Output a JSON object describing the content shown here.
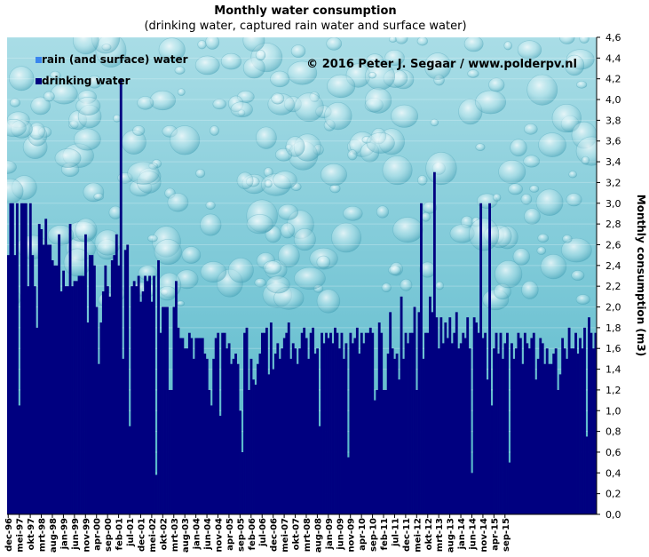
{
  "chart_data": {
    "type": "bar",
    "title": "Monthly water consumption",
    "subtitle": "(drinking  water, captured rain  water and surface water)",
    "copyright": "© 2016  Peter  J. Segaar  /  www.polderpv.nl",
    "ylabel": "Monthly consumption (m3)",
    "ylim": [
      0,
      4.6
    ],
    "yticks": [
      "0,0",
      "0,2",
      "0,4",
      "0,6",
      "0,8",
      "1,0",
      "1,2",
      "1,4",
      "1,6",
      "1,8",
      "2,0",
      "2,2",
      "2,4",
      "2,6",
      "2,8",
      "3,0",
      "3,2",
      "3,4",
      "3,6",
      "3,8",
      "4,0",
      "4,2",
      "4,4",
      "4,6"
    ],
    "legend_position": "top-left",
    "colors": {
      "drinking": "#000080",
      "rain": "#3a86ee",
      "background_top": "#a9dde6",
      "background_bottom": "#4fb4c8"
    },
    "series": [
      {
        "name": "rain (and surface) water",
        "key": "rain"
      },
      {
        "name": "drinking water",
        "key": "drinking"
      }
    ],
    "xticks": [
      "dec-96",
      "mei-97",
      "okt-97",
      "mrt-98",
      "aug-98",
      "jan-99",
      "jun-99",
      "nov-99",
      "apr-00",
      "sep-00",
      "feb-01",
      "jul-01",
      "dec-01",
      "mei-02",
      "okt-02",
      "mrt-03",
      "aug-03",
      "jan-04",
      "jun-04",
      "nov-04",
      "apr-05",
      "sep-05",
      "feb-06",
      "jul-06",
      "dec-06",
      "mei-07",
      "okt-07",
      "mrt-08",
      "aug-08",
      "jan-09",
      "jun-09",
      "nov-09",
      "apr-10",
      "sep-10",
      "feb-11",
      "jul-11",
      "dec-11",
      "mei-12",
      "okt-12",
      "mrt-13",
      "aug-13",
      "jan-14",
      "jun-14",
      "nov-14",
      "apr-15",
      "sep-15"
    ],
    "drinking": [
      2.5,
      3.0,
      3.0,
      2.5,
      3.0,
      1.05,
      3.0,
      3.0,
      3.0,
      2.2,
      3.0,
      2.5,
      2.2,
      1.8,
      2.8,
      2.75,
      2.6,
      2.85,
      2.6,
      2.6,
      2.45,
      2.4,
      2.4,
      2.7,
      2.15,
      2.35,
      2.2,
      2.2,
      2.8,
      2.2,
      2.25,
      2.25,
      2.3,
      2.3,
      2.3,
      2.7,
      1.85,
      2.5,
      2.5,
      2.4,
      2.0,
      1.45,
      1.85,
      2.15,
      2.4,
      2.2,
      2.1,
      2.45,
      2.5,
      2.7,
      2.4,
      4.2,
      1.5,
      2.55,
      2.6,
      0.85,
      2.2,
      2.25,
      2.2,
      2.3,
      2.05,
      2.15,
      2.3,
      2.25,
      2.3,
      2.05,
      2.3,
      0.38,
      2.45,
      1.75,
      2.0,
      2.0,
      2.0,
      1.2,
      1.2,
      2.0,
      2.25,
      1.8,
      1.7,
      1.7,
      1.6,
      1.6,
      1.75,
      1.7,
      1.5,
      1.7,
      1.7,
      1.7,
      1.7,
      1.55,
      1.5,
      1.2,
      1.05,
      1.5,
      1.7,
      1.75,
      0.95,
      1.75,
      1.75,
      1.6,
      1.65,
      1.45,
      1.5,
      1.55,
      1.45,
      1.0,
      0.6,
      1.75,
      1.8,
      1.2,
      1.5,
      1.3,
      1.25,
      1.45,
      1.55,
      1.75,
      1.75,
      1.8,
      1.35,
      1.85,
      1.4,
      1.55,
      1.65,
      1.5,
      1.6,
      1.7,
      1.75,
      1.85,
      1.5,
      1.65,
      1.6,
      1.45,
      1.6,
      1.75,
      1.8,
      1.7,
      1.5,
      1.75,
      1.8,
      1.55,
      1.6,
      0.85,
      1.75,
      1.65,
      1.75,
      1.7,
      1.75,
      1.65,
      1.8,
      1.75,
      1.6,
      1.75,
      1.5,
      1.65,
      0.55,
      1.75,
      1.65,
      1.7,
      1.8,
      1.55,
      1.75,
      1.65,
      1.75,
      1.75,
      1.8,
      1.75,
      1.1,
      1.2,
      1.85,
      1.75,
      1.2,
      1.2,
      1.55,
      1.95,
      1.6,
      1.5,
      1.55,
      1.3,
      2.1,
      1.5,
      1.75,
      1.65,
      1.75,
      1.75,
      2.0,
      1.2,
      1.95,
      3.0,
      1.5,
      1.75,
      1.75,
      2.1,
      1.95,
      3.3,
      1.9,
      1.6,
      1.9,
      1.65,
      1.85,
      1.7,
      1.9,
      1.65,
      1.75,
      1.95,
      1.6,
      1.65,
      1.75,
      1.7,
      1.9,
      1.6,
      0.4,
      1.9,
      1.85,
      1.75,
      3.0,
      1.7,
      1.75,
      1.3,
      3.0,
      1.05,
      1.6,
      1.75,
      1.55,
      1.75,
      1.5,
      1.65,
      1.75,
      0.5,
      1.65,
      1.5,
      1.6,
      1.75,
      1.7,
      1.45,
      1.75,
      1.65,
      1.6,
      1.7,
      1.75,
      1.3,
      1.5,
      1.7,
      1.65,
      1.45,
      1.6,
      1.45,
      1.45,
      1.55,
      1.6,
      1.2,
      1.35,
      1.7,
      1.6,
      1.5,
      1.8,
      1.6,
      1.6,
      1.75,
      1.55,
      1.7,
      1.6,
      1.8,
      0.75,
      1.9,
      1.75,
      1.6,
      1.75
    ],
    "rain": [
      0,
      0,
      0,
      0,
      0,
      0,
      0,
      0,
      0,
      0,
      0,
      0,
      0,
      0,
      0,
      0,
      0,
      0,
      0,
      0,
      0,
      0,
      0,
      0,
      0,
      0,
      0,
      0,
      0,
      0,
      0,
      0,
      0,
      0,
      0,
      0,
      0,
      0,
      0,
      0,
      0,
      0,
      0,
      0,
      0,
      0,
      0,
      0,
      0,
      0,
      0,
      0,
      0,
      0,
      0,
      0,
      0,
      0,
      0,
      0,
      0,
      0,
      0,
      0,
      0,
      0,
      0,
      0,
      0,
      0,
      0,
      0,
      0,
      0,
      0,
      0,
      0,
      0,
      0,
      0,
      0,
      0,
      0,
      0,
      0,
      0,
      0,
      0,
      0,
      0,
      0,
      0,
      0,
      0,
      0,
      0,
      0,
      0,
      0,
      0,
      0,
      0,
      0,
      0,
      0,
      0,
      0,
      0,
      0,
      0,
      0,
      0,
      0,
      0,
      0,
      0,
      0,
      0,
      0,
      0,
      0,
      0,
      0,
      0,
      0,
      0,
      0,
      0,
      0,
      0,
      0,
      0,
      0,
      0,
      0,
      0,
      0,
      0,
      0,
      0,
      0,
      0,
      0,
      0,
      0,
      0,
      0,
      0,
      0,
      0,
      0,
      0,
      0,
      0,
      0,
      0,
      0,
      0,
      0,
      0,
      0,
      0,
      0,
      0,
      0,
      0,
      0,
      0,
      0,
      0,
      0,
      0,
      0,
      0,
      0,
      0,
      0,
      0,
      0,
      0,
      0,
      0,
      0,
      0,
      0,
      0,
      0,
      0,
      0,
      0,
      0,
      0,
      0,
      0,
      0,
      0,
      0,
      0,
      0,
      0,
      0,
      0,
      0,
      0,
      0,
      0,
      0,
      0,
      0,
      0,
      0,
      0,
      0,
      0,
      0,
      0,
      0,
      0,
      0,
      0,
      0,
      0,
      0,
      0,
      0,
      0,
      0,
      0,
      0,
      0,
      0,
      0,
      0,
      0,
      0,
      0,
      0,
      0,
      0,
      0,
      0,
      0,
      0,
      0,
      0,
      0,
      0,
      0,
      0,
      0,
      0,
      0,
      0,
      0,
      0,
      0,
      0,
      0,
      0,
      0,
      0,
      0,
      0,
      0,
      0,
      0,
      0,
      0,
      0
    ]
  }
}
